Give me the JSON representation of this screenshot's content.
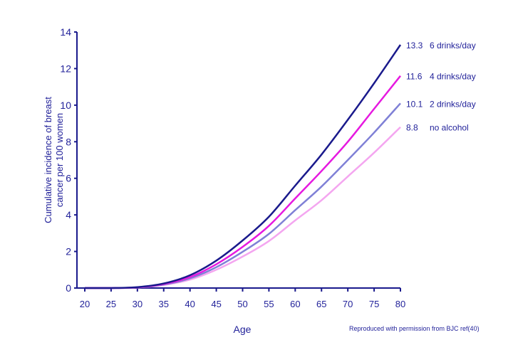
{
  "chart_data": {
    "type": "line",
    "title": "",
    "xlabel": "Age",
    "ylabel_lines": [
      "Cumulative incidence of breast",
      "cancer per 100 women"
    ],
    "x": [
      20,
      25,
      30,
      35,
      40,
      45,
      50,
      55,
      60,
      65,
      70,
      75,
      80
    ],
    "xlim": [
      20,
      80
    ],
    "ylim": [
      0,
      14
    ],
    "xticks": [
      20,
      25,
      30,
      35,
      40,
      45,
      50,
      55,
      60,
      65,
      70,
      75,
      80
    ],
    "yticks": [
      0,
      2,
      4,
      6,
      8,
      10,
      12,
      14
    ],
    "grid": false,
    "series": [
      {
        "name": "6 drinks/day",
        "end_label": "13.3",
        "color": "#1a1a8c",
        "values": [
          0,
          0,
          0.05,
          0.25,
          0.7,
          1.5,
          2.6,
          3.9,
          5.6,
          7.3,
          9.2,
          11.2,
          13.3
        ]
      },
      {
        "name": "4 drinks/day",
        "end_label": "11.6",
        "color": "#e619e0",
        "values": [
          0,
          0,
          0.04,
          0.22,
          0.6,
          1.3,
          2.25,
          3.4,
          4.9,
          6.4,
          8.0,
          9.8,
          11.6
        ]
      },
      {
        "name": "2 drinks/day",
        "end_label": "10.1",
        "color": "#7f80d6",
        "values": [
          0,
          0,
          0.04,
          0.19,
          0.53,
          1.14,
          1.98,
          2.96,
          4.26,
          5.55,
          7.0,
          8.5,
          10.1
        ]
      },
      {
        "name": "no alcohol",
        "end_label": "8.8",
        "color": "#f4a6f0",
        "values": [
          0,
          0,
          0.03,
          0.17,
          0.46,
          1.0,
          1.72,
          2.57,
          3.7,
          4.8,
          6.1,
          7.4,
          8.8
        ]
      }
    ],
    "annotation": "Reproduced with permission from BJC ref(40)"
  }
}
